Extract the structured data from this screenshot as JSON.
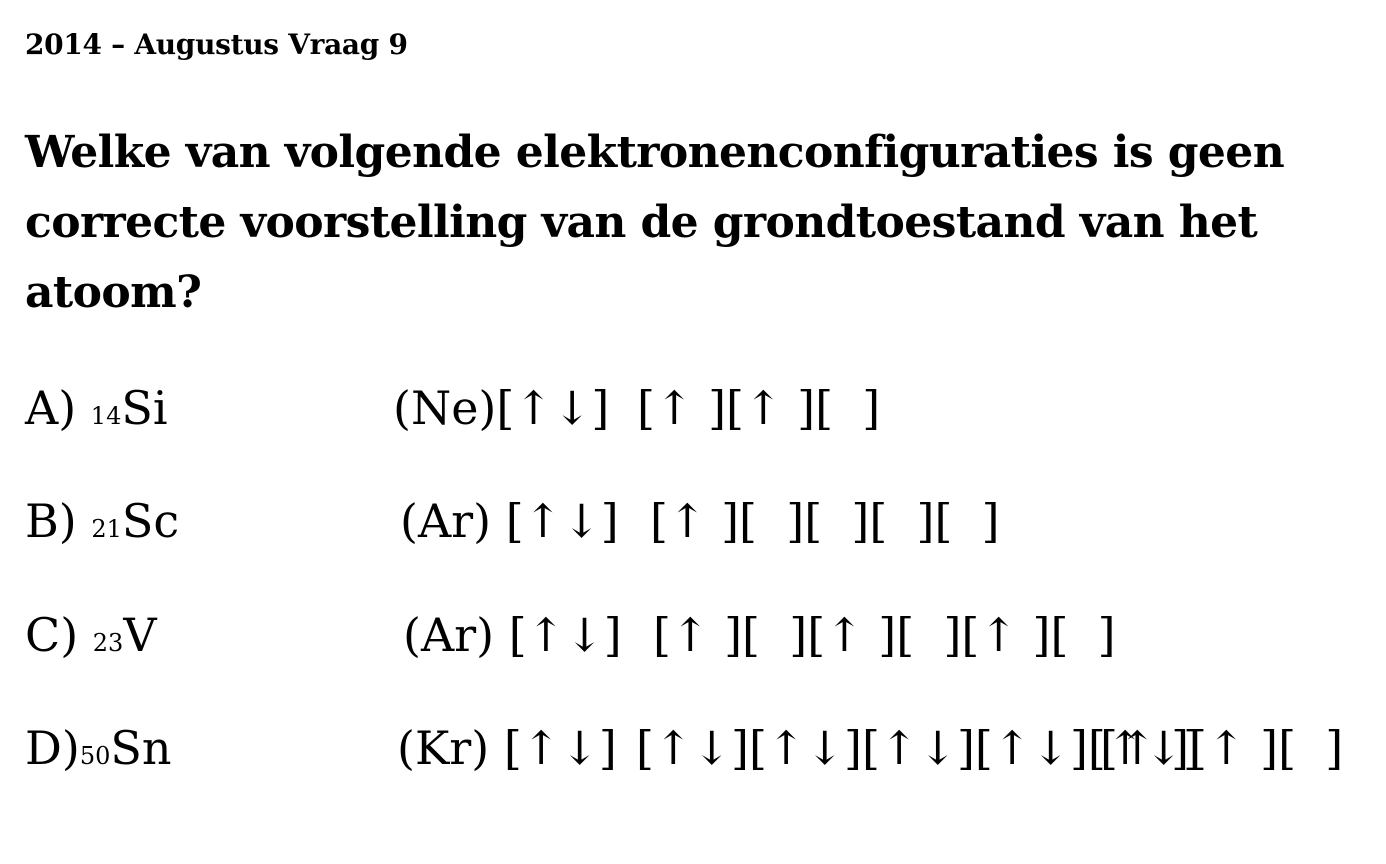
{
  "header": {
    "title": "2014 – Augustus Vraag 9"
  },
  "question": {
    "text": "Welke van volgende elektronenconfiguraties is geen correcte voorstelling van de grondtoestand van het atoom?"
  },
  "options": [
    {
      "letter": "A)",
      "atomic_number": "14",
      "symbol": "Si",
      "core": "(Ne)[↑↓]",
      "boxes": "[↑ ][↑ ][  ]"
    },
    {
      "letter": "B)",
      "atomic_number": "21",
      "symbol": "Sc",
      "core": "(Ar) [↑↓]",
      "boxes": "[↑ ][  ][  ][  ][  ]"
    },
    {
      "letter": "C)",
      "atomic_number": "23",
      "symbol": "V",
      "core": "(Ar) [↑↓]",
      "boxes": "[↑ ][  ][↑ ][  ][↑ ][  ]"
    },
    {
      "letter": "D)",
      "atomic_number": "50",
      "symbol": "Sn",
      "core": "(Kr) [↑↓]",
      "boxes": "[↑↓][↑↓][↑↓][↑↓][↑↓]",
      "boxes_extra": "[↑ ][↑ ][  ]"
    }
  ]
}
